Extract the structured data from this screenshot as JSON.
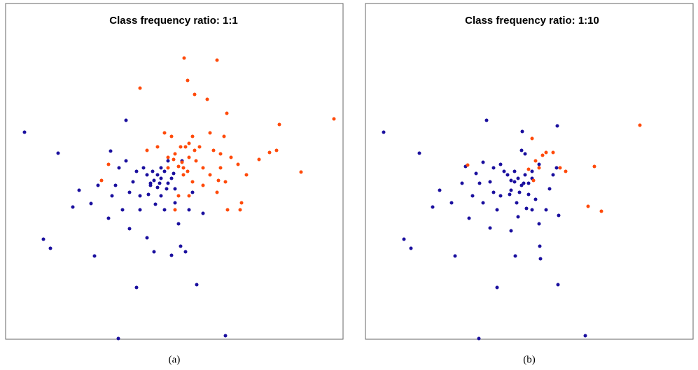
{
  "chart_data": [
    {
      "type": "scatter",
      "title": "Class frequency ratio:   1:1",
      "caption": "(a)",
      "xlim": [
        8,
        490
      ],
      "ylim": [
        0,
        480
      ],
      "series": [
        {
          "color": "#1a0f9e",
          "x": [
            35,
            83,
            180,
            158,
            113,
            104,
            130,
            62,
            72,
            135,
            169,
            195,
            281,
            322,
            258,
            265,
            245,
            155,
            185,
            210,
            220,
            200,
            230,
            250,
            270,
            290,
            230,
            220,
            215,
            225,
            235,
            240,
            245,
            210,
            205,
            195,
            190,
            180,
            170,
            160,
            175,
            250,
            260,
            240,
            230,
            215,
            225,
            238,
            248,
            200,
            185,
            165,
            140,
            275,
            255,
            235,
            222,
            212,
            228,
            218
          ],
          "values": [
            296,
            266,
            313,
            269,
            213,
            189,
            194,
            143,
            130,
            119,
            1,
            74,
            78,
            5,
            133,
            125,
            120,
            173,
            158,
            145,
            125,
            185,
            205,
            215,
            185,
            180,
            230,
            227,
            223,
            235,
            240,
            223,
            230,
            235,
            245,
            240,
            225,
            255,
            245,
            205,
            185,
            195,
            255,
            255,
            245,
            220,
            217,
            215,
            237,
            205,
            210,
            220,
            220,
            210,
            165,
            185,
            193,
            207,
            223,
            240
          ]
        },
        {
          "color": "#ff4a0a",
          "x": [
            263,
            310,
            200,
            268,
            278,
            296,
            324,
            399,
            477,
            430,
            395,
            385,
            370,
            352,
            343,
            345,
            325,
            322,
            300,
            290,
            280,
            270,
            260,
            255,
            262,
            250,
            258,
            270,
            245,
            235,
            275,
            285,
            305,
            315,
            330,
            340,
            210,
            225,
            155,
            145,
            262,
            268,
            275,
            255,
            270,
            290,
            310,
            250,
            265,
            278,
            248,
            240,
            240,
            300,
            320,
            315,
            312
          ],
          "values": [
            402,
            399,
            359,
            370,
            350,
            343,
            323,
            307,
            315,
            239,
            270,
            267,
            257,
            235,
            185,
            195,
            185,
            225,
            235,
            245,
            255,
            260,
            253,
            247,
            245,
            265,
            275,
            280,
            290,
            295,
            290,
            275,
            270,
            265,
            260,
            250,
            270,
            275,
            250,
            227,
            235,
            240,
            225,
            205,
            205,
            220,
            210,
            185,
            275,
            270,
            257,
            245,
            260,
            295,
            290,
            245,
            227
          ]
        }
      ]
    },
    {
      "type": "scatter",
      "title": "Class frequency ratio:   1:10",
      "caption": "(b)",
      "xlim": [
        522,
        990
      ],
      "ylim": [
        0,
        480
      ],
      "series": [
        {
          "color": "#1a0f9e",
          "x": [
            548,
            599,
            695,
            746,
            796,
            628,
            618,
            645,
            577,
            587,
            650,
            684,
            710,
            797,
            836,
            771,
            772,
            736,
            670,
            700,
            730,
            740,
            760,
            780,
            798,
            740,
            735,
            745,
            730,
            725,
            750,
            755,
            760,
            720,
            715,
            705,
            700,
            690,
            680,
            675,
            690,
            765,
            770,
            750,
            745,
            730,
            742,
            755,
            760,
            715,
            705,
            685,
            660,
            785,
            770,
            752,
            738,
            728,
            748,
            735,
            790,
            795,
            665,
            710
          ],
          "values": [
            296,
            266,
            313,
            297,
            305,
            213,
            189,
            195,
            143,
            130,
            119,
            1,
            74,
            78,
            5,
            133,
            115,
            119,
            173,
            159,
            155,
            175,
            185,
            185,
            177,
            230,
            225,
            220,
            227,
            235,
            235,
            223,
            230,
            240,
            250,
            245,
            225,
            253,
            237,
            205,
            195,
            200,
            250,
            265,
            270,
            213,
            210,
            207,
            240,
            205,
            210,
            223,
            223,
            215,
            165,
            187,
            195,
            207,
            223,
            240,
            235,
            245,
            247,
            185
          ]
        },
        {
          "color": "#ff4a0a",
          "x": [
            914,
            849,
            840,
            859,
            760,
            780,
            790,
            800,
            770,
            765,
            668,
            762,
            755,
            808,
            775
          ],
          "values": [
            306,
            247,
            190,
            183,
            287,
            267,
            267,
            245,
            245,
            255,
            249,
            227,
            243,
            240,
            263
          ]
        }
      ]
    }
  ]
}
